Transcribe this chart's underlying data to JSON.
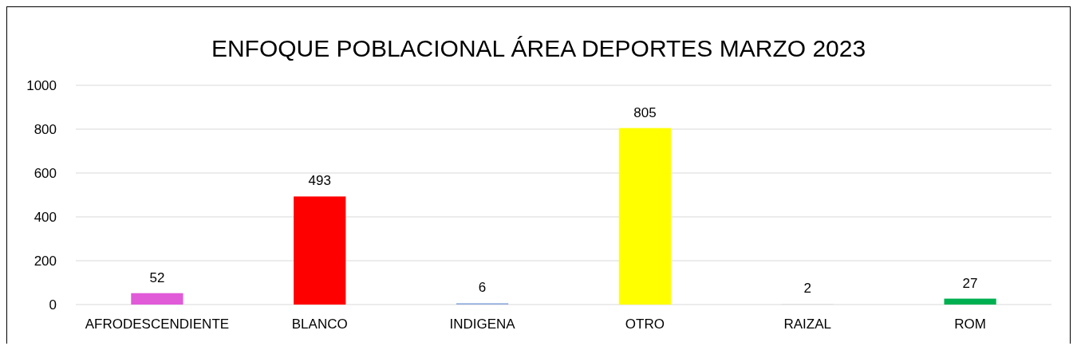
{
  "chart_data": {
    "type": "bar",
    "title": "ENFOQUE POBLACIONAL ÁREA DEPORTES MARZO 2023",
    "categories": [
      "AFRODESCENDIENTE",
      "BLANCO",
      "INDIGENA",
      "OTRO",
      "RAIZAL",
      "ROM"
    ],
    "values": [
      52,
      493,
      6,
      805,
      2,
      27
    ],
    "colors": [
      "#e15ad8",
      "#ff0000",
      "#8eaadb",
      "#ffff00",
      "#d9d9d9",
      "#00b050"
    ],
    "ylim": [
      0,
      1000
    ],
    "yticks": [
      0,
      200,
      400,
      600,
      800,
      1000
    ],
    "grid": "y",
    "data_labels": true
  }
}
